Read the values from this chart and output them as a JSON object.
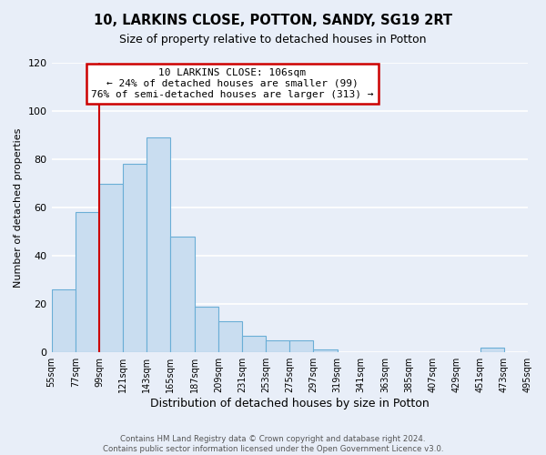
{
  "title": "10, LARKINS CLOSE, POTTON, SANDY, SG19 2RT",
  "subtitle": "Size of property relative to detached houses in Potton",
  "xlabel": "Distribution of detached houses by size in Potton",
  "ylabel": "Number of detached properties",
  "bin_edges": [
    55,
    77,
    99,
    121,
    143,
    165,
    187,
    209,
    231,
    253,
    275,
    297,
    319,
    341,
    363,
    385,
    407,
    429,
    451,
    473,
    495
  ],
  "bar_heights": [
    26,
    58,
    70,
    78,
    89,
    48,
    19,
    13,
    7,
    5,
    5,
    1,
    0,
    0,
    0,
    0,
    0,
    0,
    2,
    0
  ],
  "bar_color": "#c9ddf0",
  "bar_edge_color": "#6aaed6",
  "property_line_x": 99,
  "annotation_line1": "10 LARKINS CLOSE: 106sqm",
  "annotation_line2": "← 24% of detached houses are smaller (99)",
  "annotation_line3": "76% of semi-detached houses are larger (313) →",
  "annotation_box_color": "#ffffff",
  "annotation_box_edge_color": "#cc0000",
  "property_line_color": "#cc0000",
  "ylim": [
    0,
    120
  ],
  "yticks": [
    0,
    20,
    40,
    60,
    80,
    100,
    120
  ],
  "tick_labels": [
    "55sqm",
    "77sqm",
    "99sqm",
    "121sqm",
    "143sqm",
    "165sqm",
    "187sqm",
    "209sqm",
    "231sqm",
    "253sqm",
    "275sqm",
    "297sqm",
    "319sqm",
    "341sqm",
    "363sqm",
    "385sqm",
    "407sqm",
    "429sqm",
    "451sqm",
    "473sqm",
    "495sqm"
  ],
  "footer_text": "Contains HM Land Registry data © Crown copyright and database right 2024.\nContains public sector information licensed under the Open Government Licence v3.0.",
  "background_color": "#e8eef8",
  "grid_color": "#ffffff"
}
